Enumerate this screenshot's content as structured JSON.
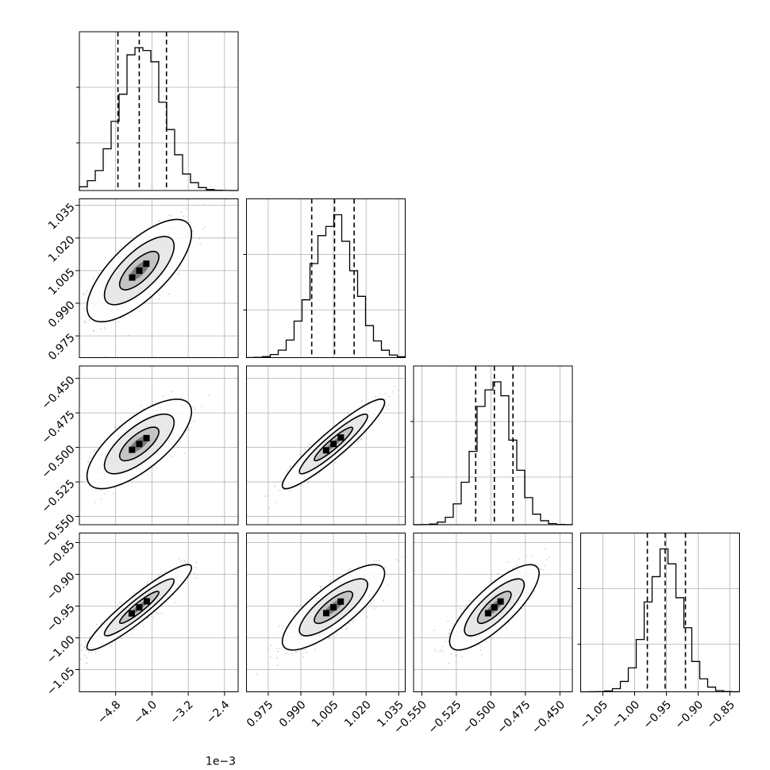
{
  "chart_data": {
    "type": "corner",
    "grid": true,
    "parameters": [
      {
        "index": 0,
        "range": [
          -5.6,
          -2.1
        ],
        "ticks": [
          -4.8,
          -4.0,
          -3.2,
          -2.4
        ],
        "tick_labels": [
          "−4.8",
          "−4.0",
          "−3.2",
          "−2.4"
        ],
        "offset_label": "1e−3",
        "quantiles": [
          -4.75,
          -4.28,
          -3.68
        ],
        "mean": -4.28,
        "sd": 0.48
      },
      {
        "index": 1,
        "range": [
          0.965,
          1.038
        ],
        "ticks": [
          0.975,
          0.99,
          1.005,
          1.02,
          1.035
        ],
        "tick_labels": [
          "0.975",
          "0.990",
          "1.005",
          "1.020",
          "1.035"
        ],
        "offset_label": "",
        "quantiles": [
          0.995,
          1.0055,
          1.0145
        ],
        "mean": 1.005,
        "sd": 0.0098
      },
      {
        "index": 2,
        "range": [
          -0.556,
          -0.441
        ],
        "ticks": [
          -0.55,
          -0.525,
          -0.5,
          -0.475,
          -0.45
        ],
        "tick_labels": [
          "−0.550",
          "−0.525",
          "−0.500",
          "−0.475",
          "−0.450"
        ],
        "offset_label": "",
        "quantiles": [
          -0.511,
          -0.4975,
          -0.484
        ],
        "mean": -0.4975,
        "sd": 0.0135
      },
      {
        "index": 3,
        "range": [
          -1.085,
          -0.835
        ],
        "ticks": [
          -1.05,
          -1.0,
          -0.95,
          -0.9,
          -0.85
        ],
        "tick_labels": [
          "−1.05",
          "−1.00",
          "−0.95",
          "−0.90",
          "−0.85"
        ],
        "offset_label": "",
        "quantiles": [
          -0.98,
          -0.952,
          -0.92
        ],
        "mean": -0.952,
        "sd": 0.028
      }
    ],
    "pairs": [
      {
        "x": 0,
        "y": 1,
        "corr": 0.72
      },
      {
        "x": 0,
        "y": 2,
        "corr": 0.72
      },
      {
        "x": 1,
        "y": 2,
        "corr": 0.93
      },
      {
        "x": 0,
        "y": 3,
        "corr": 0.93
      },
      {
        "x": 1,
        "y": 3,
        "corr": 0.8
      },
      {
        "x": 2,
        "y": 3,
        "corr": 0.8
      }
    ]
  }
}
